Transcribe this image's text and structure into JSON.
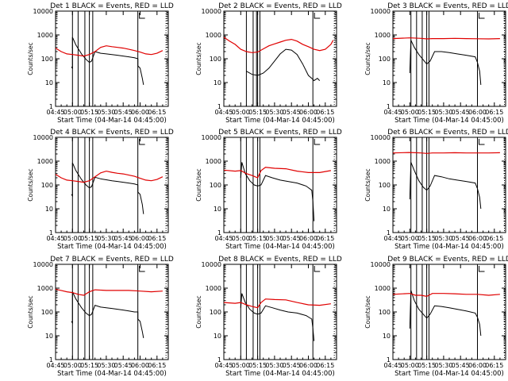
{
  "colors": {
    "events": "#000000",
    "lld": "#e00000"
  },
  "chart_data": [
    {
      "type": "line",
      "title": "Det 1  BLACK = Events, RED = LLD",
      "xlabel": "Start Time (04-Mar-14 04:45:00)",
      "ylabel": "Counts/sec",
      "yscale": "log",
      "ylim": [
        1,
        10000
      ],
      "xtick_labels": [
        "04:45",
        "05:00",
        "05:15",
        "05:30",
        "05:45",
        "06:00",
        "06:15"
      ],
      "ytick_labels": [
        "1",
        "10",
        "100",
        "1000",
        "10000"
      ],
      "vlines": [
        "05:00",
        "05:05",
        "05:11",
        "05:15",
        "05:18",
        "05:58"
      ],
      "dlines": [
        "06:23"
      ],
      "series": [
        {
          "name": "Events",
          "color": "black",
          "x": [
            "04:59",
            "05:00",
            "05:00",
            "05:03",
            "05:08",
            "05:12",
            "05:15",
            "05:17",
            "05:20",
            "05:25",
            "05:30",
            "05:35",
            "05:40",
            "05:45",
            "05:50",
            "05:55",
            "05:58",
            "05:58",
            "06:00",
            "06:02",
            "06:03"
          ],
          "y": [
            45,
            40,
            800,
            380,
            160,
            95,
            70,
            80,
            200,
            170,
            160,
            150,
            140,
            130,
            120,
            110,
            100,
            50,
            40,
            15,
            8
          ]
        },
        {
          "name": "LLD",
          "color": "red",
          "x": [
            "04:45",
            "04:50",
            "04:55",
            "05:00",
            "05:05",
            "05:10",
            "05:15",
            "05:20",
            "05:25",
            "05:30",
            "05:35",
            "05:40",
            "05:45",
            "05:50",
            "05:55",
            "06:00",
            "06:05",
            "06:10",
            "06:15",
            "06:20"
          ],
          "y": [
            280,
            200,
            160,
            150,
            140,
            130,
            150,
            200,
            300,
            350,
            320,
            300,
            280,
            250,
            220,
            190,
            160,
            150,
            170,
            220
          ]
        }
      ]
    },
    {
      "type": "line",
      "title": "Det 2  BLACK = Events, RED = LLD",
      "xlabel": "Start Time (04-Mar-14 04:45:00)",
      "ylabel": "Counts/sec",
      "yscale": "log",
      "ylim": [
        1,
        10000
      ],
      "xtick_labels": [
        "04:45",
        "05:00",
        "05:15",
        "05:30",
        "05:45",
        "06:00",
        "06:15"
      ],
      "ytick_labels": [
        "1",
        "10",
        "100",
        "1000",
        "10000"
      ],
      "vlines": [
        "05:05",
        "05:11",
        "05:14",
        "05:15",
        "05:17",
        "06:04"
      ],
      "dlines": [
        "06:23"
      ],
      "series": [
        {
          "name": "Events",
          "color": "black",
          "x": [
            "05:05",
            "05:10",
            "05:15",
            "05:20",
            "05:25",
            "05:30",
            "05:35",
            "05:40",
            "05:45",
            "05:50",
            "05:55",
            "06:00",
            "06:03",
            "06:05",
            "06:08",
            "06:10"
          ],
          "y": [
            30,
            22,
            20,
            25,
            40,
            80,
            160,
            250,
            230,
            150,
            60,
            20,
            15,
            12,
            15,
            12
          ]
        },
        {
          "name": "LLD",
          "color": "red",
          "x": [
            "04:45",
            "04:50",
            "04:55",
            "05:00",
            "05:05",
            "05:10",
            "05:15",
            "05:20",
            "05:25",
            "05:30",
            "05:35",
            "05:40",
            "05:45",
            "05:50",
            "05:55",
            "06:00",
            "06:05",
            "06:10",
            "06:15",
            "06:20",
            "06:22"
          ],
          "y": [
            800,
            550,
            400,
            250,
            200,
            180,
            190,
            260,
            350,
            420,
            500,
            600,
            650,
            550,
            400,
            320,
            250,
            220,
            250,
            400,
            600
          ]
        }
      ]
    },
    {
      "type": "line",
      "title": "Det 3  BLACK = Events, RED = LLD",
      "xlabel": "Start Time (04-Mar-14 04:45:00)",
      "ylabel": "Counts/sec",
      "yscale": "log",
      "ylim": [
        1,
        10000
      ],
      "xtick_labels": [
        "04:45",
        "05:00",
        "05:15",
        "05:30",
        "05:45",
        "06:00",
        "06:15"
      ],
      "ytick_labels": [
        "1",
        "10",
        "100",
        "1000",
        "10000"
      ],
      "vlines": [
        "05:01",
        "05:06",
        "05:11",
        "05:15",
        "05:17",
        "06:00"
      ],
      "dlines": [
        "06:24"
      ],
      "series": [
        {
          "name": "Events",
          "color": "black",
          "x": [
            "05:00",
            "05:01",
            "05:04",
            "05:08",
            "05:12",
            "05:15",
            "05:18",
            "05:22",
            "05:28",
            "05:35",
            "05:42",
            "05:50",
            "05:58",
            "06:00",
            "06:02",
            "06:03"
          ],
          "y": [
            25,
            600,
            300,
            150,
            90,
            60,
            80,
            200,
            200,
            180,
            160,
            140,
            120,
            70,
            30,
            8
          ]
        },
        {
          "name": "LLD",
          "color": "red",
          "x": [
            "04:45",
            "05:00",
            "05:10",
            "05:15",
            "05:20",
            "05:30",
            "05:40",
            "05:50",
            "06:00",
            "06:10",
            "06:20"
          ],
          "y": [
            700,
            750,
            720,
            680,
            700,
            700,
            720,
            700,
            690,
            680,
            700
          ]
        }
      ]
    },
    {
      "type": "line",
      "title": "Det 4  BLACK = Events, RED = LLD",
      "xlabel": "Start Time (04-Mar-14 04:45:00)",
      "ylabel": "Counts/sec",
      "yscale": "log",
      "ylim": [
        1,
        10000
      ],
      "xtick_labels": [
        "04:45",
        "05:00",
        "05:15",
        "05:30",
        "05:45",
        "06:00",
        "06:15"
      ],
      "ytick_labels": [
        "1",
        "10",
        "100",
        "1000",
        "10000"
      ],
      "vlines": [
        "05:00",
        "05:05",
        "05:11",
        "05:15",
        "05:18",
        "05:58"
      ],
      "dlines": [
        "06:23"
      ],
      "series": [
        {
          "name": "Events",
          "color": "black",
          "x": [
            "04:59",
            "05:00",
            "05:00",
            "05:03",
            "05:08",
            "05:12",
            "05:15",
            "05:17",
            "05:20",
            "05:25",
            "05:30",
            "05:35",
            "05:40",
            "05:45",
            "05:50",
            "05:55",
            "05:58",
            "05:58",
            "06:00",
            "06:02",
            "06:03"
          ],
          "y": [
            40,
            35,
            850,
            400,
            170,
            100,
            75,
            85,
            210,
            180,
            165,
            150,
            140,
            130,
            120,
            110,
            100,
            50,
            40,
            15,
            6
          ]
        },
        {
          "name": "LLD",
          "color": "red",
          "x": [
            "04:45",
            "04:50",
            "04:55",
            "05:00",
            "05:05",
            "05:10",
            "05:15",
            "05:20",
            "05:25",
            "05:30",
            "05:35",
            "05:40",
            "05:45",
            "05:50",
            "05:55",
            "06:00",
            "06:05",
            "06:10",
            "06:15",
            "06:20"
          ],
          "y": [
            280,
            200,
            160,
            150,
            140,
            130,
            150,
            220,
            320,
            380,
            340,
            310,
            290,
            260,
            230,
            190,
            160,
            150,
            170,
            220
          ]
        }
      ]
    },
    {
      "type": "line",
      "title": "Det 5  BLACK = Events, RED = LLD",
      "xlabel": "Start Time (04-Mar-14 04:45:00)",
      "ylabel": "Counts/sec",
      "yscale": "log",
      "ylim": [
        1,
        10000
      ],
      "xtick_labels": [
        "04:45",
        "05:00",
        "05:15",
        "05:30",
        "05:45",
        "06:00",
        "06:15"
      ],
      "ytick_labels": [
        "1",
        "10",
        "100",
        "1000",
        "10000"
      ],
      "vlines": [
        "05:00",
        "05:05",
        "05:11",
        "05:15",
        "05:17",
        "06:04"
      ],
      "dlines": [
        "06:23"
      ],
      "series": [
        {
          "name": "Events",
          "color": "black",
          "x": [
            "05:00",
            "05:01",
            "05:04",
            "05:08",
            "05:12",
            "05:15",
            "05:18",
            "05:22",
            "05:28",
            "05:35",
            "05:42",
            "05:50",
            "05:58",
            "06:03",
            "06:04",
            "06:05"
          ],
          "y": [
            200,
            900,
            300,
            150,
            100,
            90,
            100,
            250,
            200,
            160,
            140,
            120,
            90,
            60,
            20,
            3
          ]
        },
        {
          "name": "LLD",
          "color": "red",
          "x": [
            "04:45",
            "04:55",
            "05:00",
            "05:05",
            "05:10",
            "05:15",
            "05:18",
            "05:22",
            "05:30",
            "05:40",
            "05:50",
            "06:00",
            "06:10",
            "06:20"
          ],
          "y": [
            420,
            380,
            400,
            300,
            250,
            200,
            400,
            550,
            500,
            480,
            380,
            330,
            330,
            400
          ]
        }
      ]
    },
    {
      "type": "line",
      "title": "Det 6  BLACK = Events, RED = LLD",
      "xlabel": "Start Time (04-Mar-14 04:45:00)",
      "ylabel": "Counts/sec",
      "yscale": "log",
      "ylim": [
        1,
        10000
      ],
      "xtick_labels": [
        "04:45",
        "05:00",
        "05:15",
        "05:30",
        "05:45",
        "06:00",
        "06:15"
      ],
      "ytick_labels": [
        "1",
        "10",
        "100",
        "1000",
        "10000"
      ],
      "vlines": [
        "05:01",
        "05:06",
        "05:11",
        "05:15",
        "05:17",
        "06:00"
      ],
      "dlines": [
        "06:24"
      ],
      "series": [
        {
          "name": "Events",
          "color": "black",
          "x": [
            "05:00",
            "05:01",
            "05:04",
            "05:08",
            "05:12",
            "05:15",
            "05:18",
            "05:22",
            "05:28",
            "05:35",
            "05:42",
            "05:50",
            "05:58",
            "06:00",
            "06:02",
            "06:03"
          ],
          "y": [
            25,
            900,
            400,
            150,
            80,
            60,
            90,
            250,
            220,
            180,
            160,
            140,
            120,
            70,
            30,
            10
          ]
        },
        {
          "name": "LLD",
          "color": "red",
          "x": [
            "04:45",
            "05:00",
            "05:10",
            "05:15",
            "05:20",
            "05:30",
            "05:40",
            "05:50",
            "06:00",
            "06:10",
            "06:20"
          ],
          "y": [
            2200,
            2300,
            2200,
            2100,
            2200,
            2200,
            2250,
            2200,
            2200,
            2200,
            2250
          ]
        }
      ]
    },
    {
      "type": "line",
      "title": "Det 7  BLACK = Events, RED = LLD",
      "xlabel": "Start Time (04-Mar-14 04:45:00)",
      "ylabel": "Counts/sec",
      "yscale": "log",
      "ylim": [
        1,
        10000
      ],
      "xtick_labels": [
        "04:45",
        "05:00",
        "05:15",
        "05:30",
        "05:45",
        "06:00",
        "06:15"
      ],
      "ytick_labels": [
        "1",
        "10",
        "100",
        "1000",
        "10000"
      ],
      "vlines": [
        "05:00",
        "05:05",
        "05:11",
        "05:15",
        "05:18",
        "05:58"
      ],
      "dlines": [
        "06:23"
      ],
      "series": [
        {
          "name": "Events",
          "color": "black",
          "x": [
            "04:59",
            "05:00",
            "05:00",
            "05:03",
            "05:08",
            "05:12",
            "05:15",
            "05:17",
            "05:20",
            "05:25",
            "05:30",
            "05:35",
            "05:40",
            "05:45",
            "05:50",
            "05:55",
            "05:58",
            "05:58",
            "06:00",
            "06:02",
            "06:03"
          ],
          "y": [
            40,
            35,
            700,
            350,
            150,
            90,
            70,
            80,
            190,
            160,
            150,
            140,
            130,
            120,
            110,
            100,
            100,
            50,
            40,
            15,
            8
          ]
        },
        {
          "name": "LLD",
          "color": "red",
          "x": [
            "04:45",
            "04:50",
            "04:55",
            "05:00",
            "05:05",
            "05:10",
            "05:15",
            "05:20",
            "05:30",
            "05:40",
            "05:50",
            "06:00",
            "06:10",
            "06:20"
          ],
          "y": [
            900,
            800,
            700,
            650,
            550,
            500,
            700,
            850,
            800,
            800,
            800,
            750,
            700,
            750
          ]
        }
      ]
    },
    {
      "type": "line",
      "title": "Det 8  BLACK = Events, RED = LLD",
      "xlabel": "Start Time (04-Mar-14 04:45:00)",
      "ylabel": "Counts/sec",
      "yscale": "log",
      "ylim": [
        1,
        10000
      ],
      "xtick_labels": [
        "04:45",
        "05:00",
        "05:15",
        "05:30",
        "05:45",
        "06:00",
        "06:15"
      ],
      "ytick_labels": [
        "1",
        "10",
        "100",
        "1000",
        "10000"
      ],
      "vlines": [
        "05:00",
        "05:05",
        "05:11",
        "05:15",
        "05:17",
        "06:04"
      ],
      "dlines": [
        "06:23"
      ],
      "series": [
        {
          "name": "Events",
          "color": "black",
          "x": [
            "05:00",
            "05:01",
            "05:04",
            "05:08",
            "05:12",
            "05:15",
            "05:18",
            "05:22",
            "05:28",
            "05:35",
            "05:42",
            "05:50",
            "05:58",
            "06:03",
            "06:04",
            "06:05"
          ],
          "y": [
            150,
            600,
            250,
            130,
            90,
            80,
            90,
            180,
            150,
            120,
            100,
            90,
            70,
            50,
            20,
            6
          ]
        },
        {
          "name": "LLD",
          "color": "red",
          "x": [
            "04:45",
            "04:55",
            "05:00",
            "05:05",
            "05:10",
            "05:15",
            "05:18",
            "05:22",
            "05:30",
            "05:40",
            "05:50",
            "06:00",
            "06:10",
            "06:20"
          ],
          "y": [
            250,
            230,
            250,
            200,
            170,
            150,
            250,
            350,
            330,
            320,
            250,
            200,
            190,
            220
          ]
        }
      ]
    },
    {
      "type": "line",
      "title": "Det 9  BLACK = Events, RED = LLD",
      "xlabel": "Start Time (04-Mar-14 04:45:00)",
      "ylabel": "Counts/sec",
      "yscale": "log",
      "ylim": [
        1,
        10000
      ],
      "xtick_labels": [
        "04:45",
        "05:00",
        "05:15",
        "05:30",
        "05:45",
        "06:00",
        "06:15"
      ],
      "ytick_labels": [
        "1",
        "10",
        "100",
        "1000",
        "10000"
      ],
      "vlines": [
        "05:01",
        "05:06",
        "05:11",
        "05:15",
        "05:17",
        "06:00"
      ],
      "dlines": [
        "06:24"
      ],
      "series": [
        {
          "name": "Events",
          "color": "black",
          "x": [
            "05:00",
            "05:01",
            "05:04",
            "05:08",
            "05:12",
            "05:15",
            "05:18",
            "05:22",
            "05:28",
            "05:35",
            "05:42",
            "05:50",
            "05:58",
            "06:00",
            "06:02",
            "06:03"
          ],
          "y": [
            20,
            800,
            300,
            130,
            80,
            55,
            80,
            180,
            170,
            150,
            130,
            110,
            90,
            60,
            30,
            10
          ]
        },
        {
          "name": "LLD",
          "color": "red",
          "x": [
            "04:45",
            "05:00",
            "05:05",
            "05:10",
            "05:15",
            "05:20",
            "05:30",
            "05:40",
            "05:50",
            "06:00",
            "06:10",
            "06:20"
          ],
          "y": [
            550,
            600,
            500,
            500,
            450,
            600,
            600,
            580,
            550,
            550,
            500,
            550
          ]
        }
      ]
    }
  ]
}
